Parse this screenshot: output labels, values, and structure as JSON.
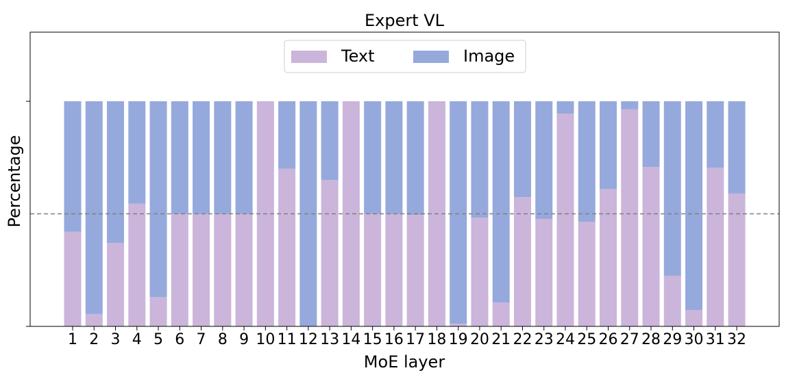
{
  "chart_data": {
    "type": "stacked_bar",
    "title": "Expert VL",
    "x_label": "MoE layer",
    "y_label": "Percentage",
    "categories": [
      "1",
      "2",
      "3",
      "4",
      "5",
      "6",
      "7",
      "8",
      "9",
      "10",
      "11",
      "12",
      "13",
      "14",
      "15",
      "16",
      "17",
      "18",
      "19",
      "20",
      "21",
      "22",
      "23",
      "24",
      "25",
      "26",
      "27",
      "28",
      "29",
      "30",
      "31",
      "32"
    ],
    "series": [
      {
        "name": "Text",
        "color": "#cbb5da",
        "values": [
          42,
          5.5,
          37,
          54.5,
          13,
          50,
          50,
          50,
          50,
          100,
          70,
          0,
          65,
          100,
          50,
          50,
          49.5,
          100,
          1.2,
          48.3,
          10.6,
          57.4,
          47.7,
          94.5,
          46.5,
          61,
          96.4,
          70.8,
          22.5,
          7.3,
          70.5,
          59
        ]
      },
      {
        "name": "Image",
        "color": "#96a9dc",
        "values": [
          58,
          94.5,
          63,
          45.5,
          87,
          50,
          50,
          50,
          50,
          0,
          30,
          100,
          35,
          0,
          50,
          50,
          50.5,
          0,
          98.8,
          51.7,
          89.4,
          42.6,
          52.3,
          5.5,
          53.5,
          39,
          3.6,
          29.2,
          77.5,
          92.7,
          29.5,
          41
        ]
      }
    ],
    "ylim": [
      0,
      130.7
    ],
    "yticks": [
      0,
      100
    ],
    "hline": 50,
    "legend": "upper center"
  }
}
